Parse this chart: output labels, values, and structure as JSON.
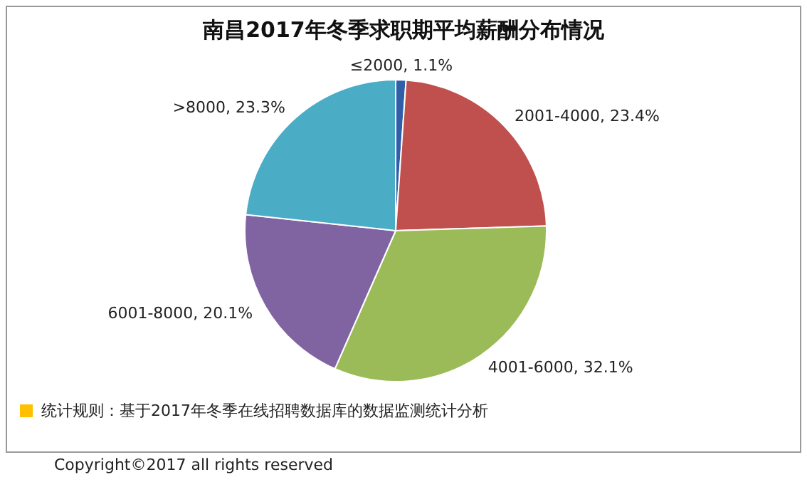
{
  "chart_data": {
    "type": "pie",
    "title": "南昌2017年冬季求职期平均薪酬分布情况",
    "categories": [
      "≤2000",
      "2001-4000",
      "4001-6000",
      "6001-8000",
      ">8000"
    ],
    "values": [
      1.1,
      23.4,
      32.1,
      20.1,
      23.3
    ],
    "colors": [
      "#2e5fa8",
      "#c0504d",
      "#9bbb59",
      "#8064a2",
      "#4bacc6"
    ],
    "value_labels": [
      ", 1.1%",
      ", 23.4%",
      ", 32.1%",
      ", 20.1%",
      ", 23.3%"
    ],
    "legend": false,
    "annotations": [
      "统计规则：基于2017年冬季在线招聘数据库的数据监测统计分析",
      "Copyright©2017 all rights reserved"
    ]
  }
}
